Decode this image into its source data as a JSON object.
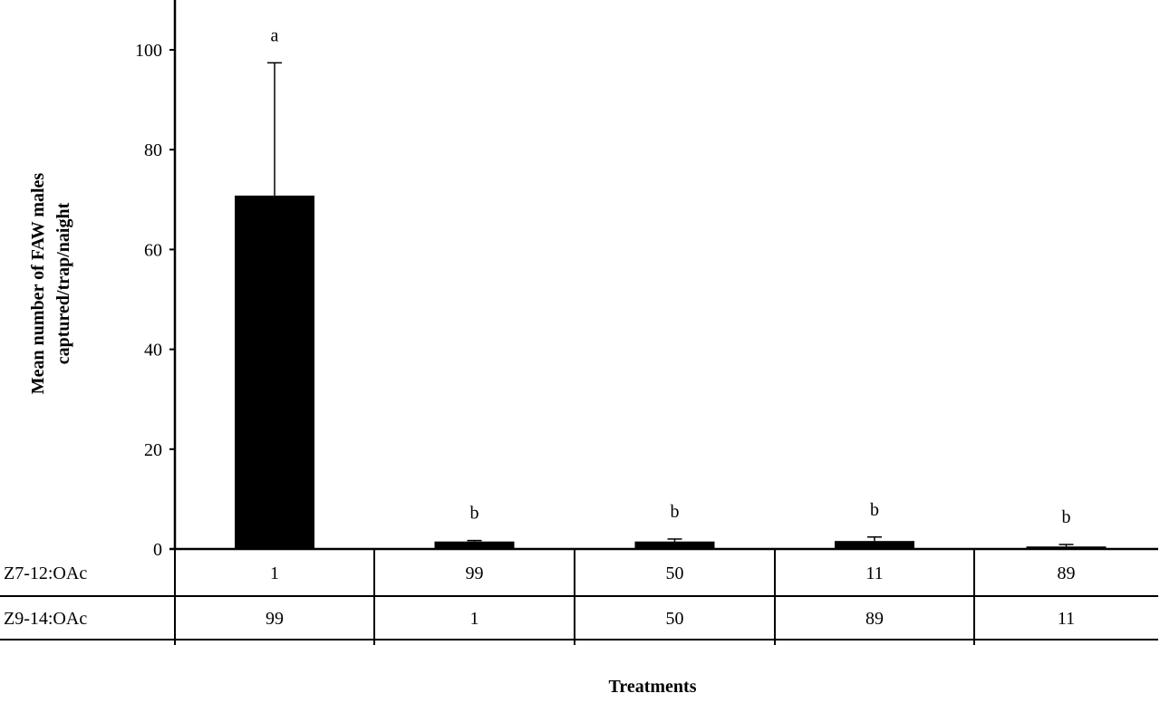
{
  "chart_data": {
    "type": "bar",
    "title": "",
    "xlabel": "Treatments",
    "ylabel_lines": [
      "Mean number of FAW males",
      "captured/trap/naight"
    ],
    "ylim": [
      0,
      110
    ],
    "yticks": [
      0,
      20,
      40,
      60,
      80,
      100
    ],
    "grid": false,
    "bar_color": "#000000",
    "categories": [
      "1:99",
      "99:1",
      "50:50",
      "11:89",
      "89:11"
    ],
    "values": [
      70.8,
      1.5,
      1.5,
      1.6,
      0.5
    ],
    "error_upper": [
      97.4,
      1.7,
      2.0,
      2.4,
      0.9
    ],
    "significance_letters": [
      "a",
      "b",
      "b",
      "b",
      "b"
    ],
    "table": {
      "rows": [
        {
          "label": "Z7-12:OAc",
          "cells": [
            "1",
            "99",
            "50",
            "11",
            "89"
          ]
        },
        {
          "label": "Z9-14:OAc",
          "cells": [
            "99",
            "1",
            "50",
            "89",
            "11"
          ]
        }
      ]
    }
  }
}
